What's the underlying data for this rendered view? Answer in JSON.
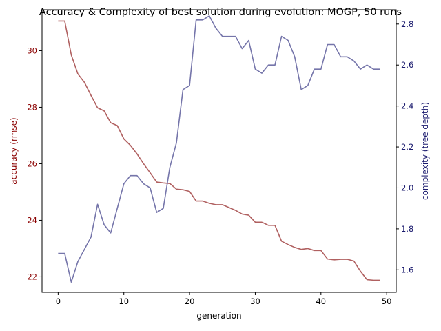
{
  "chart_data": {
    "type": "line",
    "title": "Accuracy & Complexity of best solution during evolution: MOGP, 50 runs",
    "xlabel": "generation",
    "ylabel_left": "accuracy (rmse)",
    "ylabel_right": "complexity (tree depth)",
    "xlim": [
      -2.45,
      51.45
    ],
    "ylim_left": [
      21.45,
      31.45
    ],
    "ylim_right": [
      1.49,
      2.87
    ],
    "xticks": [
      0,
      10,
      20,
      30,
      40,
      50
    ],
    "yticks_left": [
      22,
      24,
      26,
      28,
      30
    ],
    "yticks_right": [
      1.6,
      1.8,
      2.0,
      2.2,
      2.4,
      2.6,
      2.8
    ],
    "colors": {
      "accuracy": "#b06060",
      "complexity": "#7575aa",
      "left_axis": "#8b0000",
      "right_axis": "#1a1a6e"
    },
    "x": [
      0,
      1,
      2,
      3,
      4,
      5,
      6,
      7,
      8,
      9,
      10,
      11,
      12,
      13,
      14,
      15,
      16,
      17,
      18,
      19,
      20,
      21,
      22,
      23,
      24,
      25,
      26,
      27,
      28,
      29,
      30,
      31,
      32,
      33,
      34,
      35,
      36,
      37,
      38,
      39,
      40,
      41,
      42,
      43,
      44,
      45,
      46,
      47,
      48,
      49
    ],
    "series": [
      {
        "axis": "left",
        "values": [
          31.05,
          31.05,
          29.85,
          29.18,
          28.88,
          28.42,
          27.98,
          27.87,
          27.45,
          27.35,
          26.88,
          26.65,
          26.35,
          26.0,
          25.68,
          25.35,
          25.32,
          25.3,
          25.1,
          25.08,
          25.02,
          24.68,
          24.68,
          24.6,
          24.55,
          24.55,
          24.45,
          24.35,
          24.22,
          24.18,
          23.93,
          23.93,
          23.82,
          23.82,
          23.26,
          23.14,
          23.04,
          22.97,
          23.0,
          22.93,
          22.93,
          22.63,
          22.6,
          22.62,
          22.62,
          22.56,
          22.2,
          21.9,
          21.88,
          21.88
        ]
      },
      {
        "axis": "right",
        "values": [
          1.68,
          1.68,
          1.54,
          1.64,
          1.7,
          1.76,
          1.92,
          1.82,
          1.78,
          1.9,
          2.02,
          2.06,
          2.06,
          2.02,
          2.0,
          1.88,
          1.9,
          2.1,
          2.22,
          2.48,
          2.5,
          2.82,
          2.82,
          2.84,
          2.78,
          2.74,
          2.74,
          2.74,
          2.68,
          2.72,
          2.58,
          2.56,
          2.6,
          2.6,
          2.74,
          2.72,
          2.64,
          2.48,
          2.5,
          2.58,
          2.58,
          2.7,
          2.7,
          2.64,
          2.64,
          2.62,
          2.58,
          2.6,
          2.58,
          2.58
        ]
      }
    ]
  }
}
